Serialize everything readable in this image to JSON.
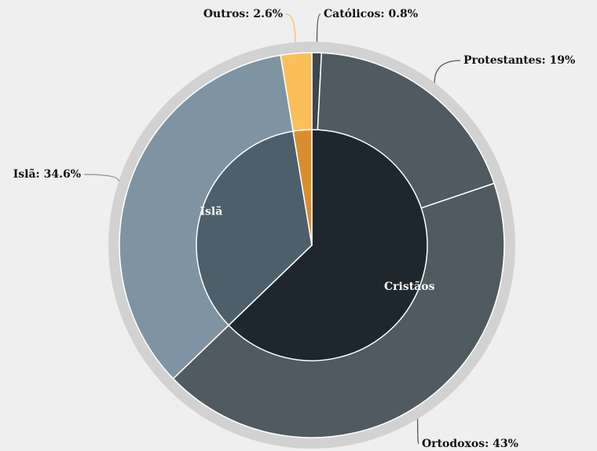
{
  "chart_data": {
    "type": "nested-donut",
    "inner": {
      "categories": [
        "Cristãos",
        "Islã",
        null
      ],
      "values": [
        62.8,
        34.6,
        2.6
      ],
      "colors": [
        "#1e272d",
        "#4c5f6b",
        "#d98e2e"
      ]
    },
    "outer": {
      "values": [
        0.8,
        19,
        43,
        34.6,
        2.6
      ],
      "value_labels": [
        "Católicos: 0.8%",
        "Protestantes: 19%",
        "Ortodoxos: 43%",
        "Islã: 34.6%",
        "Outros: 2.6%"
      ],
      "colors": [
        "#3d464d",
        "#4f5a61",
        "#4f5a61",
        "#7f94a2",
        "#fbbf5a"
      ]
    }
  }
}
